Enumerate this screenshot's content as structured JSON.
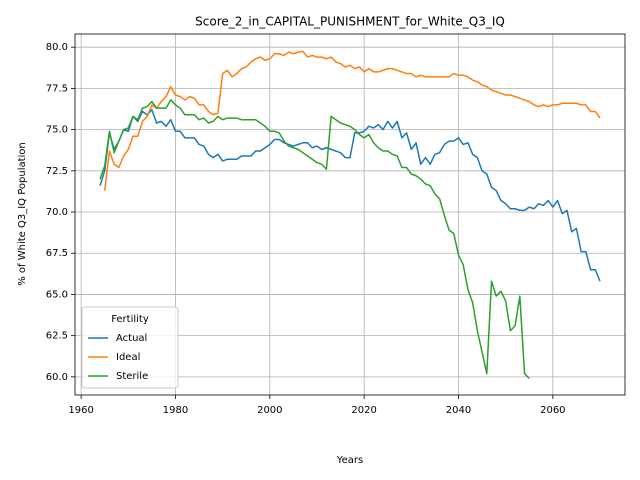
{
  "chart_data": {
    "type": "line",
    "title": "Score_2_in_CAPITAL_PUNISHMENT_for_White_Q3_IQ",
    "x_label": "Years",
    "y_label": "% of White Q3_IQ Population",
    "x": [
      1964,
      1965,
      1966,
      1967,
      1968,
      1969,
      1970,
      1971,
      1972,
      1973,
      1974,
      1975,
      1976,
      1977,
      1978,
      1979,
      1980,
      1981,
      1982,
      1983,
      1984,
      1985,
      1986,
      1987,
      1988,
      1989,
      1990,
      1991,
      1992,
      1993,
      1994,
      1995,
      1996,
      1997,
      1998,
      1999,
      2000,
      2001,
      2002,
      2003,
      2004,
      2005,
      2006,
      2007,
      2008,
      2009,
      2010,
      2011,
      2012,
      2013,
      2014,
      2015,
      2016,
      2017,
      2018,
      2019,
      2020,
      2021,
      2022,
      2023,
      2024,
      2025,
      2026,
      2027,
      2028,
      2029,
      2030,
      2031,
      2032,
      2033,
      2034,
      2035,
      2036,
      2037,
      2038,
      2039,
      2040,
      2041,
      2042,
      2043,
      2044,
      2045,
      2046,
      2047,
      2048,
      2049,
      2050,
      2051,
      2052,
      2053,
      2054,
      2055,
      2056,
      2057,
      2058,
      2059,
      2060,
      2061,
      2062,
      2063,
      2064,
      2065,
      2066,
      2067,
      2068,
      2069,
      2070
    ],
    "series": [
      {
        "name": "Actual",
        "color": "#1f77b4",
        "values": [
          71.6,
          72.5,
          74.8,
          73.8,
          74.3,
          75.0,
          74.9,
          75.8,
          75.5,
          76.1,
          75.9,
          76.2,
          75.4,
          75.5,
          75.2,
          75.6,
          74.9,
          74.9,
          74.5,
          74.5,
          74.5,
          74.1,
          74.0,
          73.5,
          73.3,
          73.5,
          73.1,
          73.2,
          73.2,
          73.2,
          73.4,
          73.4,
          73.4,
          73.7,
          73.7,
          73.9,
          74.1,
          74.4,
          74.4,
          74.2,
          74.1,
          74.0,
          74.1,
          74.2,
          74.2,
          73.9,
          74.0,
          73.8,
          73.9,
          73.8,
          73.7,
          73.6,
          73.3,
          73.3,
          74.8,
          74.8,
          74.9,
          75.2,
          75.1,
          75.3,
          75.0,
          75.5,
          75.1,
          75.5,
          74.5,
          74.8,
          73.8,
          74.2,
          72.9,
          73.3,
          72.9,
          73.5,
          73.6,
          74.1,
          74.3,
          74.3,
          74.5,
          74.1,
          74.2,
          73.5,
          73.3,
          72.5,
          72.3,
          71.5,
          71.3,
          70.7,
          70.5,
          70.2,
          70.2,
          70.1,
          70.1,
          70.3,
          70.2,
          70.5,
          70.4,
          70.7,
          70.3,
          70.7,
          69.9,
          70.1,
          68.8,
          69.0,
          67.6,
          67.6,
          66.5,
          66.5,
          65.8
        ]
      },
      {
        "name": "Ideal",
        "color": "#ff7f0e",
        "values": [
          null,
          71.3,
          73.7,
          72.9,
          72.7,
          73.4,
          73.8,
          74.6,
          74.6,
          75.5,
          75.8,
          76.5,
          76.3,
          76.7,
          77.0,
          77.6,
          77.1,
          77.0,
          76.8,
          77.0,
          76.9,
          76.5,
          76.5,
          76.1,
          75.9,
          76.0,
          78.4,
          78.6,
          78.2,
          78.4,
          78.7,
          78.8,
          79.1,
          79.3,
          79.4,
          79.2,
          79.3,
          79.6,
          79.6,
          79.5,
          79.7,
          79.6,
          79.7,
          79.75,
          79.4,
          79.5,
          79.4,
          79.4,
          79.3,
          79.4,
          79.1,
          79.0,
          78.8,
          78.9,
          78.7,
          78.8,
          78.5,
          78.7,
          78.5,
          78.5,
          78.6,
          78.7,
          78.7,
          78.6,
          78.5,
          78.4,
          78.4,
          78.2,
          78.3,
          78.2,
          78.2,
          78.2,
          78.2,
          78.2,
          78.2,
          78.4,
          78.3,
          78.3,
          78.2,
          78.0,
          77.9,
          77.7,
          77.6,
          77.4,
          77.3,
          77.2,
          77.1,
          77.1,
          77.0,
          76.9,
          76.8,
          76.7,
          76.5,
          76.4,
          76.5,
          76.4,
          76.5,
          76.5,
          76.6,
          76.6,
          76.6,
          76.6,
          76.5,
          76.5,
          76.1,
          76.1,
          75.7
        ]
      },
      {
        "name": "Sterile",
        "color": "#2ca02c",
        "values": [
          72.0,
          72.8,
          74.9,
          73.6,
          74.3,
          75.0,
          75.1,
          75.8,
          75.6,
          76.3,
          76.4,
          76.7,
          76.3,
          76.3,
          76.3,
          76.8,
          76.5,
          76.3,
          75.9,
          75.9,
          75.9,
          75.6,
          75.7,
          75.4,
          75.5,
          75.8,
          75.6,
          75.7,
          75.7,
          75.7,
          75.6,
          75.6,
          75.6,
          75.6,
          75.4,
          75.2,
          74.9,
          74.9,
          74.8,
          74.3,
          74.0,
          73.9,
          73.8,
          73.6,
          73.4,
          73.2,
          73.0,
          72.9,
          72.6,
          75.8,
          75.6,
          75.4,
          75.3,
          75.2,
          75.0,
          74.7,
          74.5,
          74.7,
          74.2,
          73.9,
          73.7,
          73.7,
          73.5,
          73.4,
          72.7,
          72.7,
          72.3,
          72.2,
          72.0,
          71.7,
          71.6,
          71.1,
          70.8,
          69.8,
          68.9,
          68.7,
          67.4,
          66.8,
          65.3,
          64.5,
          62.8,
          61.5,
          60.2,
          65.8,
          64.9,
          65.2,
          64.6,
          62.8,
          63.1,
          64.9,
          60.2,
          59.9,
          null,
          null,
          null,
          null,
          null,
          null,
          null,
          null,
          null,
          null,
          null,
          null,
          null,
          null,
          null
        ]
      }
    ],
    "xlim": [
      1958.7,
      2075.3
    ],
    "ylim": [
      58.9,
      80.8
    ],
    "xticks": [
      1960,
      1980,
      2000,
      2020,
      2040,
      2060
    ],
    "yticks": [
      {
        "value": 60,
        "label": "60.0"
      },
      {
        "value": 62.5,
        "label": "62.5"
      },
      {
        "value": 65,
        "label": "65.0"
      },
      {
        "value": 67.5,
        "label": "67.5"
      },
      {
        "value": 70,
        "label": "70.0"
      },
      {
        "value": 72.5,
        "label": "72.5"
      },
      {
        "value": 75,
        "label": "75.0"
      },
      {
        "value": 77.5,
        "label": "77.5"
      },
      {
        "value": 80,
        "label": "80.0"
      }
    ],
    "grid": true,
    "legend_title": "Fertility",
    "legend_position": "lower left"
  }
}
